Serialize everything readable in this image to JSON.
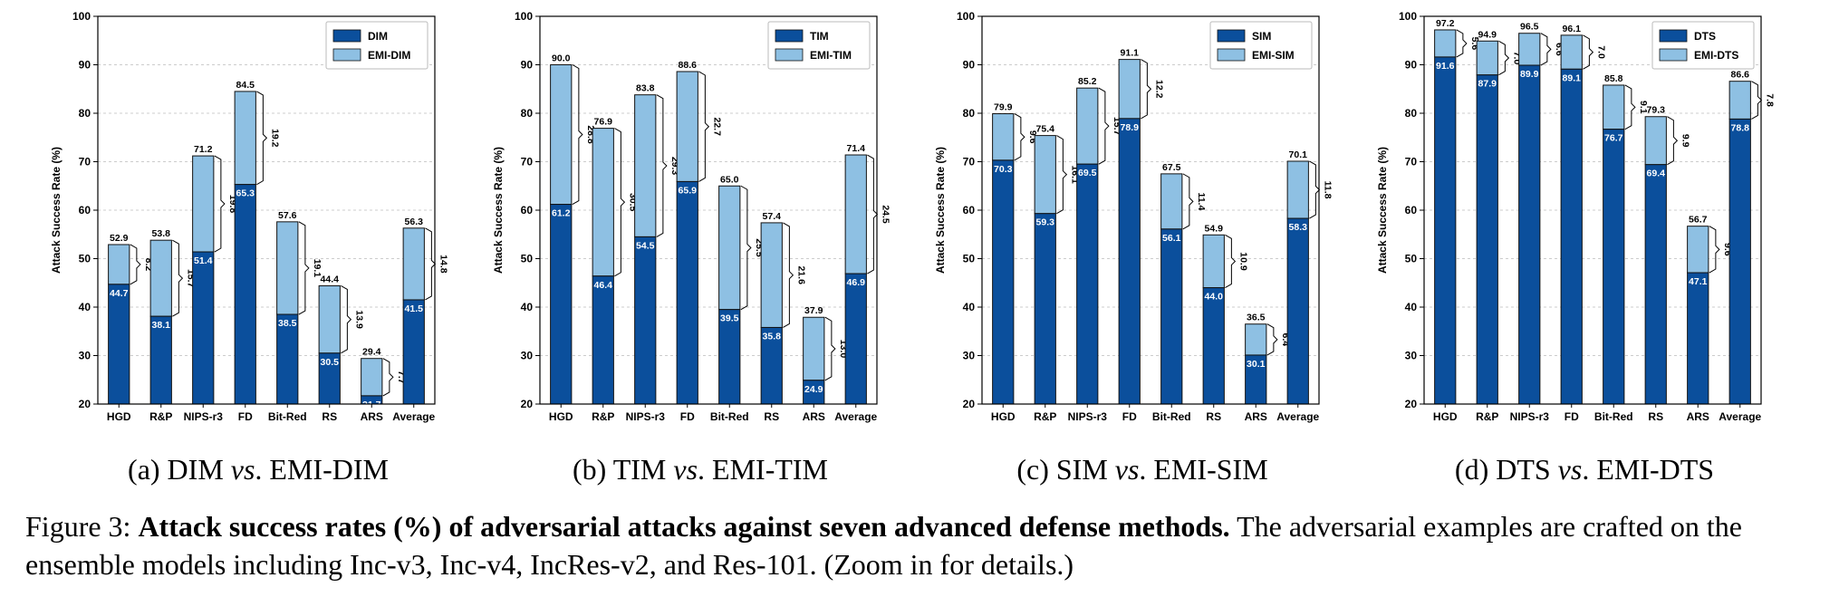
{
  "figure": {
    "caption_label": "Figure 3:",
    "caption_bold": "Attack success rates (%) of adversarial attacks against seven advanced defense methods.",
    "caption_rest": "The adversarial examples are crafted on the ensemble models including Inc-v3, Inc-v4, IncRes-v2, and Res-101. (Zoom in for details.)"
  },
  "colors": {
    "base": "#0b4f9c",
    "emi": "#8ec0e3",
    "edge": "#111111"
  },
  "chart_data": [
    {
      "type": "bar",
      "subcaption": {
        "pre": "(a) DIM ",
        "vs": "vs",
        "post": ". EMI-DIM"
      },
      "categories": [
        "HGD",
        "R&P",
        "NIPS-r3",
        "FD",
        "Bit-Red",
        "RS",
        "ARS",
        "Average"
      ],
      "series": [
        {
          "name": "DIM",
          "values": [
            44.7,
            38.1,
            51.4,
            65.3,
            38.5,
            30.5,
            21.7,
            41.5
          ]
        },
        {
          "name": "EMI-DIM",
          "values": [
            52.9,
            53.8,
            71.2,
            84.5,
            57.6,
            44.4,
            29.4,
            56.3
          ]
        }
      ],
      "gains": [
        "8.2",
        "15.7",
        "19.8",
        "19.2",
        "19.1",
        "13.9",
        "7.7",
        "14.8"
      ],
      "ylabel": "Attack Success Rate (%)",
      "ylim": [
        20,
        100
      ],
      "yticks": [
        "20",
        "30",
        "40",
        "50",
        "60",
        "70",
        "80",
        "90",
        "100"
      ],
      "legend": "top-right"
    },
    {
      "type": "bar",
      "subcaption": {
        "pre": "(b) TIM ",
        "vs": "vs",
        "post": ". EMI-TIM"
      },
      "categories": [
        "HGD",
        "R&P",
        "NIPS-r3",
        "FD",
        "Bit-Red",
        "RS",
        "ARS",
        "Average"
      ],
      "series": [
        {
          "name": "TIM",
          "values": [
            61.2,
            46.4,
            54.5,
            65.9,
            39.5,
            35.8,
            24.9,
            46.9
          ]
        },
        {
          "name": "EMI-TIM",
          "values": [
            90.0,
            76.9,
            83.8,
            88.6,
            65.0,
            57.4,
            37.9,
            71.4
          ]
        }
      ],
      "gains": [
        "28.8",
        "30.5",
        "29.3",
        "22.7",
        "25.5",
        "21.6",
        "13.0",
        "24.5"
      ],
      "ylabel": "Attack Success Rate (%)",
      "ylim": [
        20,
        100
      ],
      "yticks": [
        "20",
        "30",
        "40",
        "50",
        "60",
        "70",
        "80",
        "90",
        "100"
      ],
      "legend": "top-right"
    },
    {
      "type": "bar",
      "subcaption": {
        "pre": "(c) SIM ",
        "vs": "vs",
        "post": ". EMI-SIM"
      },
      "categories": [
        "HGD",
        "R&P",
        "NIPS-r3",
        "FD",
        "Bit-Red",
        "RS",
        "ARS",
        "Average"
      ],
      "series": [
        {
          "name": "SIM",
          "values": [
            70.3,
            59.3,
            69.5,
            78.9,
            56.1,
            44.0,
            30.1,
            58.3
          ]
        },
        {
          "name": "EMI-SIM",
          "values": [
            79.9,
            75.4,
            85.2,
            91.1,
            67.5,
            54.9,
            36.5,
            70.1
          ]
        }
      ],
      "gains": [
        "9.6",
        "16.1",
        "15.7",
        "12.2",
        "11.4",
        "10.9",
        "6.4",
        "11.8"
      ],
      "ylabel": "Attack Success Rate (%)",
      "ylim": [
        20,
        100
      ],
      "yticks": [
        "20",
        "30",
        "40",
        "50",
        "60",
        "70",
        "80",
        "90",
        "100"
      ],
      "legend": "top-right"
    },
    {
      "type": "bar",
      "subcaption": {
        "pre": "(d) DTS ",
        "vs": "vs",
        "post": ". EMI-DTS"
      },
      "categories": [
        "HGD",
        "R&P",
        "NIPS-r3",
        "FD",
        "Bit-Red",
        "RS",
        "ARS",
        "Average"
      ],
      "series": [
        {
          "name": "DTS",
          "values": [
            91.6,
            87.9,
            89.9,
            89.1,
            76.7,
            69.4,
            47.1,
            78.8
          ]
        },
        {
          "name": "EMI-DTS",
          "values": [
            97.2,
            94.9,
            96.5,
            96.1,
            85.8,
            79.3,
            56.7,
            86.6
          ]
        }
      ],
      "gains": [
        "5.6",
        "7.0",
        "6.6",
        "7.0",
        "9.1",
        "9.9",
        "9.6",
        "7.8"
      ],
      "ylabel": "Attack Success Rate (%)",
      "ylim": [
        20,
        100
      ],
      "yticks": [
        "20",
        "30",
        "40",
        "50",
        "60",
        "70",
        "80",
        "90",
        "100"
      ],
      "legend": "top-right"
    }
  ]
}
